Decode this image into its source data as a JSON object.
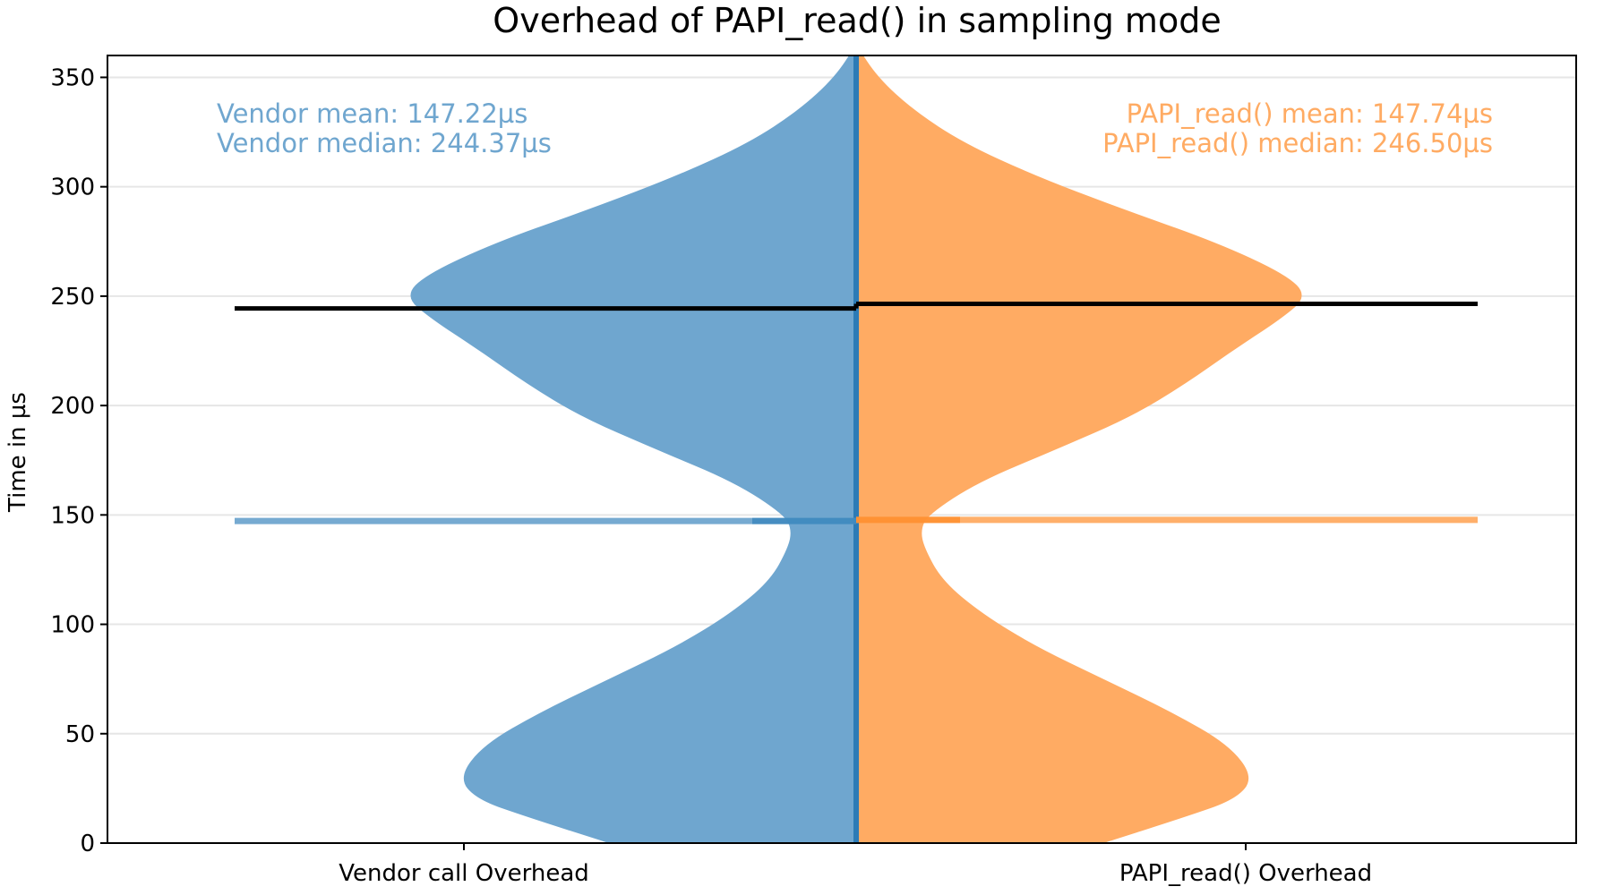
{
  "chart_data": {
    "type": "violin",
    "title": "Overhead of PAPI_read() in sampling mode",
    "xlabel": "",
    "ylabel": "Time in µs",
    "ylim": [
      0,
      360
    ],
    "yticks": [
      0,
      50,
      100,
      150,
      200,
      250,
      300,
      350
    ],
    "grid": "horizontal",
    "categories": [
      "Vendor call Overhead",
      "PAPI_read() Overhead"
    ],
    "series": [
      {
        "name": "Vendor call Overhead",
        "side": "left",
        "color": "#1f77b4",
        "fill_color": "#6fa6cf",
        "mean": 147.22,
        "median": 244.37,
        "annotation_lines": [
          "Vendor mean: 147.22µs",
          "Vendor median: 244.37µs"
        ],
        "density": [
          {
            "y": 0,
            "w": 0.345
          },
          {
            "y": 12,
            "w": 0.46
          },
          {
            "y": 20,
            "w": 0.53
          },
          {
            "y": 30,
            "w": 0.555
          },
          {
            "y": 45,
            "w": 0.52
          },
          {
            "y": 60,
            "w": 0.44
          },
          {
            "y": 75,
            "w": 0.345
          },
          {
            "y": 90,
            "w": 0.25
          },
          {
            "y": 105,
            "w": 0.175
          },
          {
            "y": 120,
            "w": 0.12
          },
          {
            "y": 135,
            "w": 0.095
          },
          {
            "y": 143,
            "w": 0.09
          },
          {
            "y": 150,
            "w": 0.1
          },
          {
            "y": 165,
            "w": 0.17
          },
          {
            "y": 180,
            "w": 0.28
          },
          {
            "y": 195,
            "w": 0.385
          },
          {
            "y": 210,
            "w": 0.46
          },
          {
            "y": 225,
            "w": 0.525
          },
          {
            "y": 240,
            "w": 0.595
          },
          {
            "y": 250,
            "w": 0.63
          },
          {
            "y": 260,
            "w": 0.6
          },
          {
            "y": 275,
            "w": 0.5
          },
          {
            "y": 290,
            "w": 0.37
          },
          {
            "y": 305,
            "w": 0.25
          },
          {
            "y": 320,
            "w": 0.15
          },
          {
            "y": 335,
            "w": 0.08
          },
          {
            "y": 350,
            "w": 0.03
          },
          {
            "y": 365,
            "w": 0.0
          }
        ]
      },
      {
        "name": "PAPI_read() Overhead",
        "side": "right",
        "color": "#ff7f0e",
        "fill_color": "#ffab63",
        "mean": 147.74,
        "median": 246.5,
        "annotation_lines": [
          "PAPI_read() mean: 147.74µs",
          "PAPI_read() median: 246.50µs"
        ],
        "density": [
          {
            "y": 0,
            "w": 0.345
          },
          {
            "y": 12,
            "w": 0.46
          },
          {
            "y": 20,
            "w": 0.53
          },
          {
            "y": 30,
            "w": 0.555
          },
          {
            "y": 45,
            "w": 0.52
          },
          {
            "y": 60,
            "w": 0.44
          },
          {
            "y": 75,
            "w": 0.345
          },
          {
            "y": 90,
            "w": 0.25
          },
          {
            "y": 105,
            "w": 0.175
          },
          {
            "y": 120,
            "w": 0.12
          },
          {
            "y": 135,
            "w": 0.095
          },
          {
            "y": 143,
            "w": 0.09
          },
          {
            "y": 150,
            "w": 0.1
          },
          {
            "y": 165,
            "w": 0.17
          },
          {
            "y": 180,
            "w": 0.28
          },
          {
            "y": 195,
            "w": 0.385
          },
          {
            "y": 210,
            "w": 0.46
          },
          {
            "y": 225,
            "w": 0.525
          },
          {
            "y": 240,
            "w": 0.595
          },
          {
            "y": 250,
            "w": 0.63
          },
          {
            "y": 260,
            "w": 0.6
          },
          {
            "y": 275,
            "w": 0.5
          },
          {
            "y": 290,
            "w": 0.37
          },
          {
            "y": 305,
            "w": 0.25
          },
          {
            "y": 320,
            "w": 0.15
          },
          {
            "y": 335,
            "w": 0.08
          },
          {
            "y": 350,
            "w": 0.03
          },
          {
            "y": 365,
            "w": 0.0
          }
        ]
      }
    ]
  }
}
